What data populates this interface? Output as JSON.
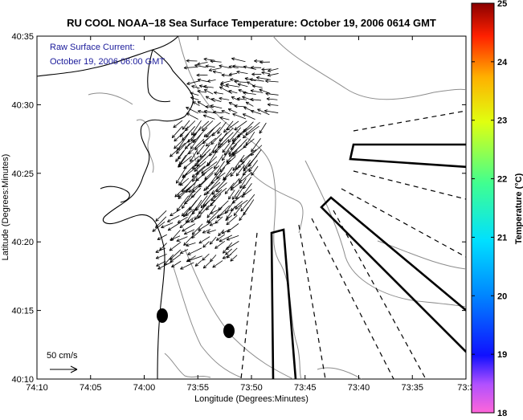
{
  "title": "RU COOL  NOAA–18  Sea Surface Temperature:  October 19, 2006 0614 GMT",
  "annotation": {
    "line1": "Raw Surface Current:",
    "line2": "October 19, 2006 06:00 GMT"
  },
  "scale_label": "50 cm/s",
  "colors": {
    "title": "#1a1a9a",
    "annotation": "#1a1a9a",
    "contour": "#8c8c8c",
    "coast": "#000000",
    "vectors": "#000000"
  },
  "chart_data": {
    "type": "map",
    "xlabel": "Longitude (Degrees:Minutes)",
    "ylabel": "Latitude (Degrees:Minutes)",
    "x_ticks": [
      "74:10",
      "74:05",
      "74:00",
      "73:55",
      "73:50",
      "73:45",
      "73:40",
      "73:35",
      "73:3"
    ],
    "y_ticks": [
      "40:35",
      "40:30",
      "40:25",
      "40:20",
      "40:15",
      "40:10"
    ],
    "x_range_minutes_west": [
      10,
      33
    ],
    "colorbar": {
      "label": "Temperature (°C)",
      "ticks": [
        "25",
        "24",
        "23",
        "22",
        "21",
        "20",
        "19",
        "18"
      ],
      "range": [
        18,
        25
      ]
    }
  }
}
